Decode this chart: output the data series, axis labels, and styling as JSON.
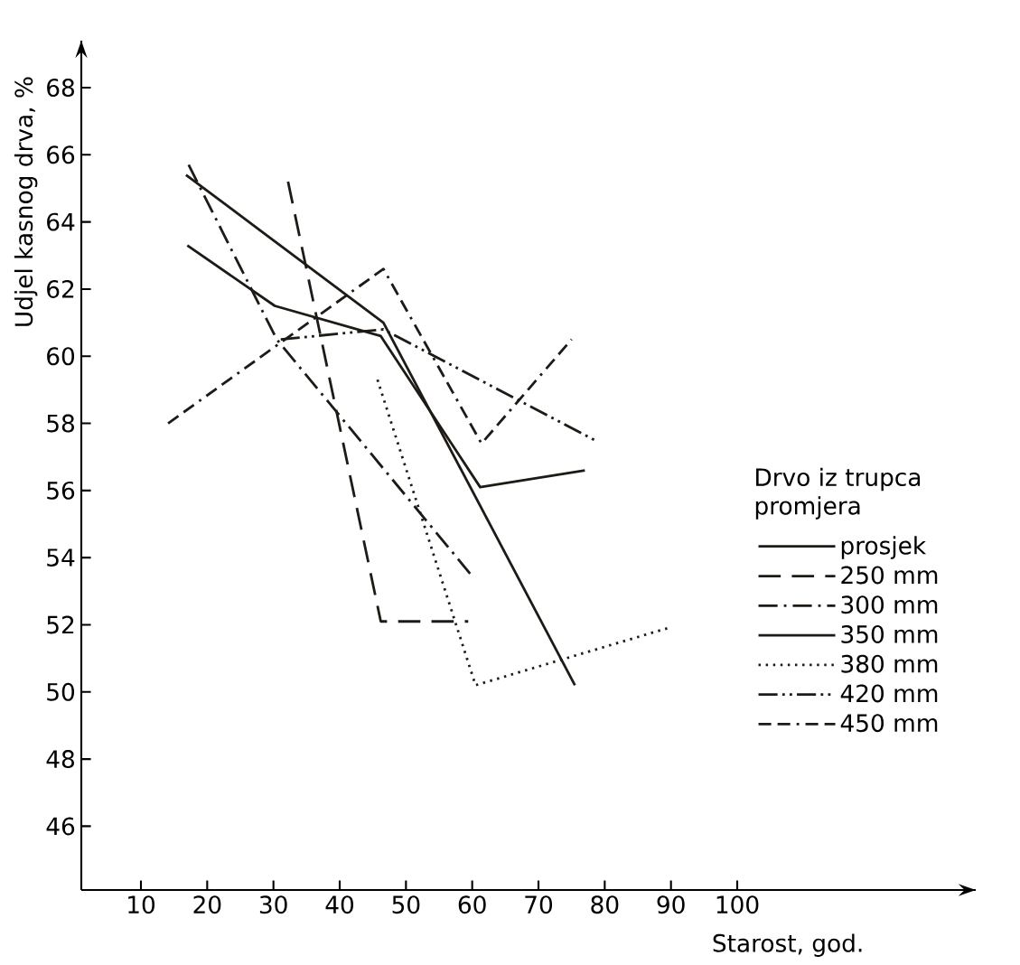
{
  "chart_data": {
    "type": "line",
    "xlabel": "Starost, god.",
    "ylabel": "Udjel kasnog drva, %",
    "legend_title": "Drvo iz trupca promjera",
    "xlim": [
      1,
      136
    ],
    "ylim": [
      44.1,
      69.4
    ],
    "xticks": [
      10,
      20,
      30,
      40,
      50,
      60,
      70,
      80,
      90,
      100
    ],
    "yticks": [
      46,
      48,
      50,
      52,
      54,
      56,
      58,
      60,
      62,
      64,
      66,
      68
    ],
    "grid": false,
    "legend": "right",
    "marker": "none",
    "series": [
      {
        "name": "prosjek",
        "color": "#1e1a16",
        "line_style": "solid",
        "x": [
          17,
          30.2,
          46.2,
          61.2,
          77
        ],
        "values": [
          63.3,
          61.5,
          60.6,
          56.1,
          56.6
        ]
      },
      {
        "name": "250 mm",
        "color": "#1e1a16",
        "line_style": "dashed",
        "x": [
          32.2,
          46.2,
          59.4
        ],
        "values": [
          65.2,
          52.1,
          52.1
        ]
      },
      {
        "name": "300 mm",
        "color": "#1e1a16",
        "line_style": "dashdot",
        "x": [
          17.2,
          30.5,
          60.2
        ],
        "values": [
          65.7,
          60.5,
          53.4
        ]
      },
      {
        "name": "350 mm",
        "color": "#1e1a16",
        "line_style": "solid",
        "x": [
          16.8,
          46.6,
          75.5
        ],
        "values": [
          65.4,
          61.0,
          50.2
        ]
      },
      {
        "name": "380 mm",
        "color": "#1e1a16",
        "line_style": "dotted",
        "x": [
          45.7,
          60.5,
          89.5
        ],
        "values": [
          59.3,
          50.2,
          51.9
        ]
      },
      {
        "name": "420 mm",
        "color": "#1e1a16",
        "line_style": "dashdotdot",
        "x": [
          31.1,
          46.6,
          78.5
        ],
        "values": [
          60.5,
          60.8,
          57.5
        ]
      },
      {
        "name": "450 mm",
        "color": "#1e1a16",
        "line_style": "dashdashdot",
        "x": [
          14.1,
          46.6,
          61.4,
          75
        ],
        "values": [
          58.0,
          62.6,
          57.4,
          60.5
        ]
      }
    ]
  }
}
